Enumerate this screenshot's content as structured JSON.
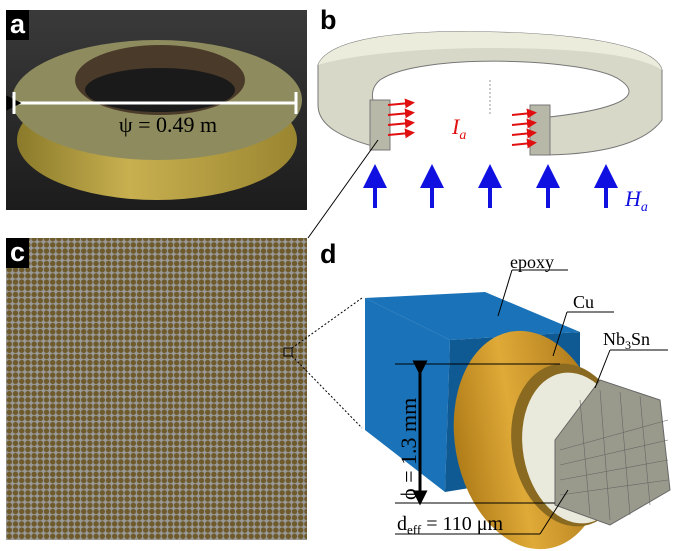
{
  "panels": {
    "a": {
      "label": "a",
      "annotation": "ψ = 0.49 m"
    },
    "b": {
      "label": "b",
      "current_label": "I",
      "current_sub": "a",
      "field_label": "H",
      "field_sub": "a",
      "current_color": "#e01010",
      "field_color": "#1010e0"
    },
    "c": {
      "label": "c"
    },
    "d": {
      "label": "d",
      "epoxy": "epoxy",
      "cu": "Cu",
      "nb3sn_pre": "Nb",
      "nb3sn_sub": "3",
      "nb3sn_post": "Sn",
      "diameter": "ϕ = 1.3 mm",
      "deff_pre": "d",
      "deff_sub": "eff",
      "deff_post": " = 110 μm",
      "colors": {
        "epoxy": "#1a72b8",
        "cu": "#d4a030",
        "filament": "#9a9a8c"
      }
    }
  }
}
